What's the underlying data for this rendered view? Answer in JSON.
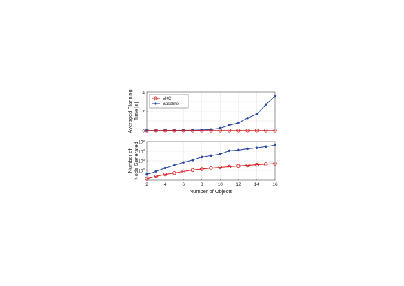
{
  "chart_data": [
    {
      "type": "line",
      "ylabel": "Averaged Planning Time [s]",
      "ylabel_lines": [
        "Averaged Planning",
        "Time [s]"
      ],
      "xlim": [
        2,
        16
      ],
      "ylim": [
        0,
        4
      ],
      "yscale": "linear",
      "yticks": [
        0,
        2,
        4
      ],
      "grid": true,
      "legend_position": "top-left",
      "series": [
        {
          "name": "VKC",
          "color": "#d62728",
          "marker": "open-circle",
          "x": [
            2,
            3,
            4,
            5,
            6,
            7,
            8,
            9,
            10,
            11,
            12,
            13,
            14,
            15,
            16
          ],
          "y": [
            0.01,
            0.01,
            0.01,
            0.01,
            0.01,
            0.01,
            0.01,
            0.01,
            0.01,
            0.01,
            0.01,
            0.01,
            0.01,
            0.01,
            0.01
          ]
        },
        {
          "name": "Baseline",
          "color": "#2b4aa0",
          "marker": "filled-circle",
          "x": [
            2,
            3,
            4,
            5,
            6,
            7,
            8,
            9,
            10,
            11,
            12,
            13,
            14,
            15,
            16
          ],
          "y": [
            0.02,
            0.02,
            0.03,
            0.03,
            0.04,
            0.05,
            0.08,
            0.12,
            0.25,
            0.55,
            0.8,
            1.3,
            1.7,
            2.7,
            3.6
          ]
        }
      ]
    },
    {
      "type": "line",
      "xlabel": "Number of Objects",
      "ylabel": "Number of Node Generated",
      "ylabel_lines": [
        "Number of",
        "Node Generated"
      ],
      "xlim": [
        2,
        16
      ],
      "xticks": [
        2,
        4,
        6,
        8,
        10,
        12,
        14,
        16
      ],
      "yscale": "log",
      "ylim": [
        10,
        100000
      ],
      "yticks": [
        {
          "value": 100,
          "base": "10",
          "exp": "2"
        },
        {
          "value": 1000,
          "base": "10",
          "exp": "3"
        },
        {
          "value": 10000,
          "base": "10",
          "exp": "4"
        },
        {
          "value": 100000,
          "base": "10",
          "exp": "5"
        }
      ],
      "grid": true,
      "series": [
        {
          "name": "VKC",
          "color": "#d62728",
          "marker": "open-circle",
          "x": [
            2,
            3,
            4,
            5,
            6,
            7,
            8,
            9,
            10,
            11,
            12,
            13,
            14,
            15,
            16
          ],
          "y": [
            14,
            25,
            40,
            55,
            80,
            110,
            140,
            175,
            210,
            250,
            300,
            340,
            400,
            450,
            520
          ]
        },
        {
          "name": "Baseline",
          "color": "#2b4aa0",
          "marker": "filled-circle",
          "x": [
            2,
            3,
            4,
            5,
            6,
            7,
            8,
            9,
            10,
            11,
            12,
            13,
            14,
            15,
            16
          ],
          "y": [
            40,
            80,
            180,
            350,
            700,
            1200,
            2500,
            3500,
            5000,
            11000,
            13000,
            18000,
            22000,
            30000,
            42000
          ]
        }
      ]
    }
  ]
}
